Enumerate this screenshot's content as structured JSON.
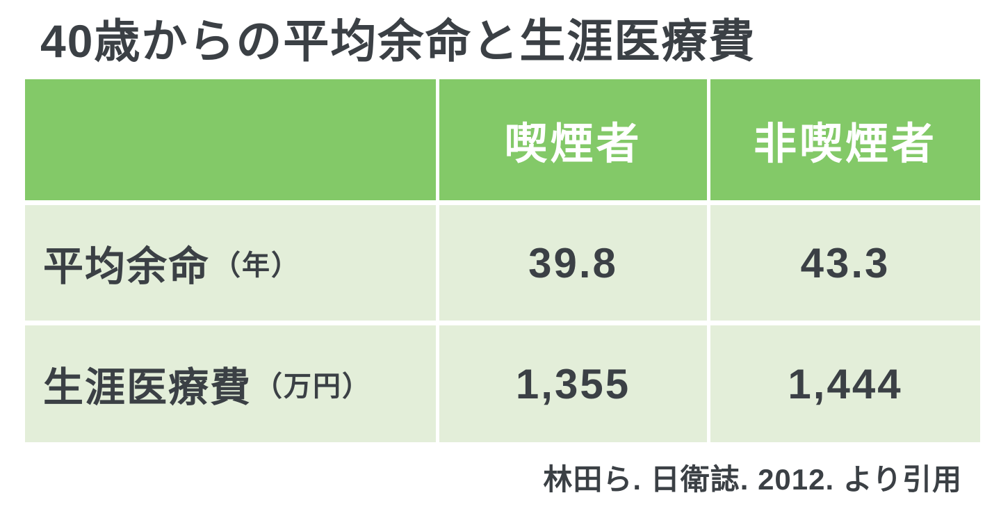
{
  "title": "40歳からの平均余命と生涯医療費",
  "source": "林田ら. 日衛誌. 2012. より引用",
  "colors": {
    "header_green": "#83C968",
    "cell_green": "#E3EED9",
    "text_dark": "#3B4045",
    "header_text": "#FFFFFF",
    "background": "#FFFFFF"
  },
  "table": {
    "header": {
      "col0": "",
      "col1": "喫煙者",
      "col2": "非喫煙者"
    },
    "rows": [
      {
        "label": "平均余命",
        "unit": "（年）",
        "smoker": "39.8",
        "nonsmoker": "43.3"
      },
      {
        "label": "生涯医療費",
        "unit": "（万円）",
        "smoker": "1,355",
        "nonsmoker": "1,444"
      }
    ]
  },
  "chart_data": {
    "type": "table",
    "title": "40歳からの平均余命と生涯医療費",
    "columns": [
      "",
      "喫煙者",
      "非喫煙者"
    ],
    "rows": [
      [
        "平均余命（年）",
        39.8,
        43.3
      ],
      [
        "生涯医療費（万円）",
        1355,
        1444
      ]
    ],
    "source": "林田ら. 日衛誌. 2012. より引用",
    "notes": "Average remaining life expectancy from age 40 (years) and lifetime medical costs (10,000 yen) for smokers vs non-smokers"
  }
}
